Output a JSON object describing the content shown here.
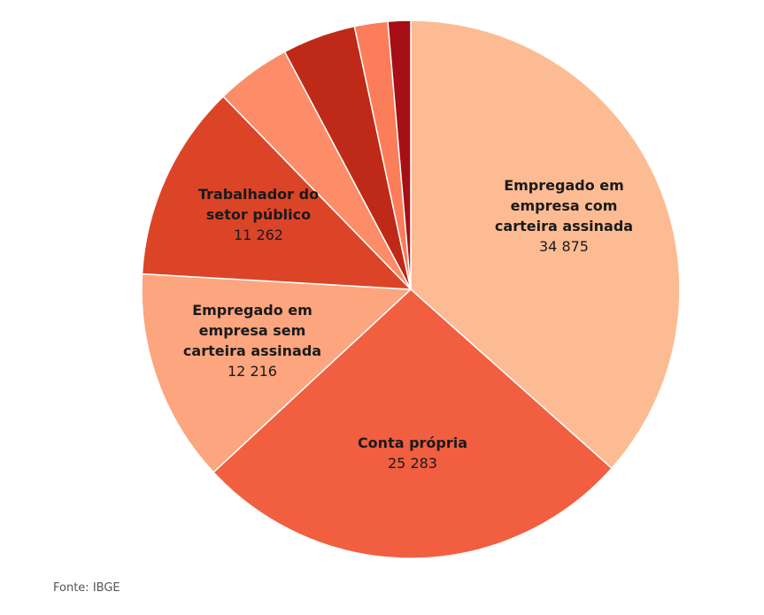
{
  "chart_data": {
    "type": "pie",
    "title": "",
    "start_angle_deg": 0,
    "direction": "clockwise",
    "slices": [
      {
        "lines": [
          "Empregado em",
          "empresa com",
          "carteira assinada"
        ],
        "value": 34875,
        "display": "34 875",
        "color": "#fdbb93"
      },
      {
        "lines": [
          "Conta própria"
        ],
        "value": 25283,
        "display": "25 283",
        "color": "#f25e40"
      },
      {
        "lines": [
          "Empregado em",
          "empresa sem",
          "carteira assinada"
        ],
        "value": 12216,
        "display": "12 216",
        "color": "#fca57e"
      },
      {
        "lines": [
          "Trabalhador do",
          "setor público"
        ],
        "value": 11262,
        "display": "11 262",
        "color": "#dc4428"
      },
      {
        "lines": [],
        "value": 4300,
        "display": "",
        "color": "#fd8c68"
      },
      {
        "lines": [],
        "value": 4200,
        "display": "",
        "color": "#be2a17"
      },
      {
        "lines": [],
        "value": 1900,
        "display": "",
        "color": "#fc7d5a"
      },
      {
        "lines": [],
        "value": 1300,
        "display": "",
        "color": "#a50f15"
      }
    ]
  },
  "source": "Fonte: IBGE"
}
